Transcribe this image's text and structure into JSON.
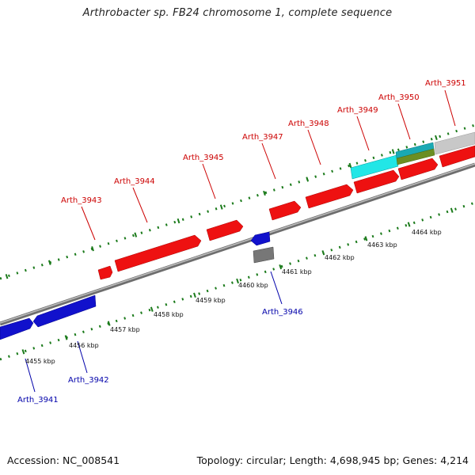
{
  "title": "Arthrobacter sp. FB24 chromosome 1, complete sequence",
  "accession_label": "Accession: NC_008541",
  "topology_label": "Topology: circular; Length: 4,698,945 bp; Genes: 4,214",
  "colors": {
    "forward_gene": "#ee1111",
    "reverse_gene": "#1111cc",
    "backbone": "#8a8a8a",
    "ticks": "#1a7a1a",
    "cyan_feature": "#22e6e6",
    "olive_feature": "#6b8e23",
    "grey_feature": "#777777",
    "light_grey_feature": "#c8c8c8"
  },
  "forward_genes": [
    {
      "id": "Arth_3943"
    },
    {
      "id": "Arth_3944"
    },
    {
      "id": "Arth_3945"
    },
    {
      "id": "Arth_3947"
    },
    {
      "id": "Arth_3948"
    },
    {
      "id": "Arth_3949"
    },
    {
      "id": "Arth_3950"
    },
    {
      "id": "Arth_3951"
    }
  ],
  "reverse_genes": [
    {
      "id": "Arth_3941"
    },
    {
      "id": "Arth_3942"
    },
    {
      "id": "Arth_3946"
    }
  ],
  "scale_ticks": [
    "4455 kbp",
    "4456 kbp",
    "4457 kbp",
    "4458 kbp",
    "4459 kbp",
    "4460 kbp",
    "4461 kbp",
    "4462 kbp",
    "4463 kbp",
    "4464 kbp"
  ]
}
